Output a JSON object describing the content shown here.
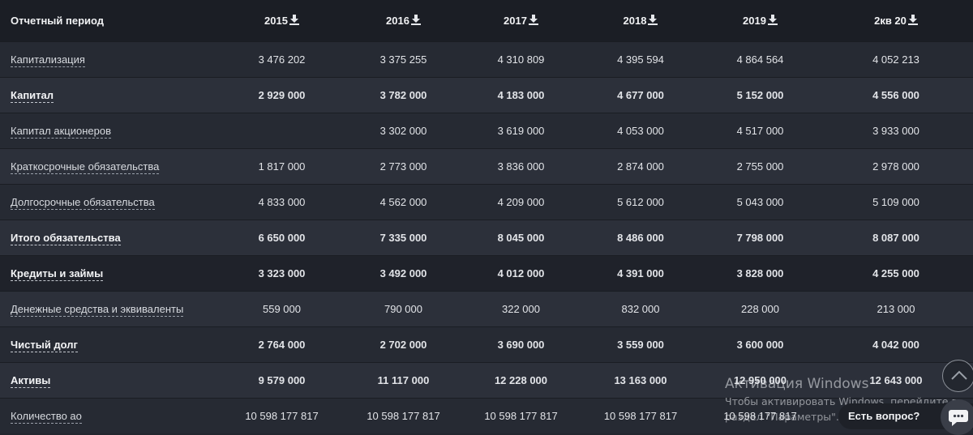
{
  "table": {
    "period_header": "Отчетный период",
    "years": [
      "2015",
      "2016",
      "2017",
      "2018",
      "2019",
      "2кв 20"
    ],
    "download_icon": "download-icon",
    "rows": [
      {
        "label": "Капитализация",
        "bold": false,
        "values": [
          "3 476 202",
          "3 375 255",
          "4 310 809",
          "4 395 594",
          "4 864 564",
          "4 052 213"
        ]
      },
      {
        "label": "Капитал",
        "bold": true,
        "values": [
          "2 929 000",
          "3 782 000",
          "4 183 000",
          "4 677 000",
          "5 152 000",
          "4 556 000"
        ]
      },
      {
        "label": "Капитал акционеров",
        "bold": false,
        "values": [
          "",
          "3 302 000",
          "3 619 000",
          "4 053 000",
          "4 517 000",
          "3 933 000"
        ]
      },
      {
        "label": "Краткосрочные обязательства",
        "bold": false,
        "values": [
          "1 817 000",
          "2 773 000",
          "3 836 000",
          "2 874 000",
          "2 755 000",
          "2 978 000"
        ]
      },
      {
        "label": "Долгосрочные обязательства",
        "bold": false,
        "values": [
          "4 833 000",
          "4 562 000",
          "4 209 000",
          "5 612 000",
          "5 043 000",
          "5 109 000"
        ]
      },
      {
        "label": "Итого обязательства",
        "bold": true,
        "values": [
          "6 650 000",
          "7 335 000",
          "8 045 000",
          "8 486 000",
          "7 798 000",
          "8 087 000"
        ]
      },
      {
        "label": "Кредиты и займы",
        "bold": true,
        "dark": true,
        "values": [
          "3 323 000",
          "3 492 000",
          "4 012 000",
          "4 391 000",
          "3 828 000",
          "4 255 000"
        ]
      },
      {
        "label": "Денежные средства и эквиваленты",
        "bold": false,
        "values": [
          "559 000",
          "790 000",
          "322 000",
          "832 000",
          "228 000",
          "213 000"
        ]
      },
      {
        "label": "Чистый долг",
        "bold": true,
        "values": [
          "2 764 000",
          "2 702 000",
          "3 690 000",
          "3 559 000",
          "3 600 000",
          "4 042 000"
        ]
      },
      {
        "label": "Активы",
        "bold": true,
        "values": [
          "9 579 000",
          "11 117 000",
          "12 228 000",
          "13 163 000",
          "12 950 000",
          "12 643 000"
        ]
      },
      {
        "label": "Количество ао",
        "bold": false,
        "values": [
          "10 598 177 817",
          "10 598 177 817",
          "10 598 177 817",
          "10 598 177 817",
          "10 598 177 817",
          "10 598 177 817"
        ]
      }
    ]
  },
  "windows_watermark": {
    "title": "Активация Windows",
    "line1": "Чтобы активировать Windows, перейдите в",
    "line2": "раздел \"Параметры\"."
  },
  "chat": {
    "label": "Есть вопрос?",
    "icon": "chat-bubble-icon"
  },
  "scroll_top_icon": "chevron-up-icon",
  "colors": {
    "background": "#23262e",
    "header_bg": "#1b1e25",
    "row_alt": "#2c303a",
    "text": "#e6e8ec"
  }
}
